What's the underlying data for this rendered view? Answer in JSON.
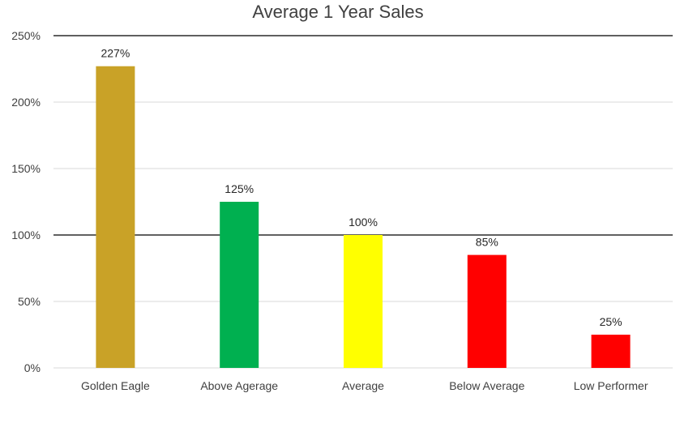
{
  "chart_data": {
    "type": "bar",
    "title": "Average 1 Year Sales",
    "xlabel": "",
    "ylabel": "",
    "categories": [
      "Golden Eagle",
      "Above Agerage",
      "Average",
      "Below Average",
      "Low Performer"
    ],
    "values": [
      227,
      125,
      100,
      85,
      25
    ],
    "data_labels": [
      "227%",
      "125%",
      "100%",
      "85%",
      "25%"
    ],
    "colors": [
      "#C9A227",
      "#00B050",
      "#FFFF00",
      "#FF0000",
      "#FF0000"
    ],
    "ylim": [
      0,
      250
    ],
    "yticks": [
      0,
      50,
      100,
      150,
      200,
      250
    ],
    "ytick_labels": [
      "0%",
      "50%",
      "100%",
      "150%",
      "200%",
      "250%"
    ],
    "grid": true,
    "emphasized_gridlines": [
      100,
      250
    ],
    "gridline_color": "#D9D9D9",
    "emphasized_gridline_color": "#000000",
    "legend": "none"
  }
}
